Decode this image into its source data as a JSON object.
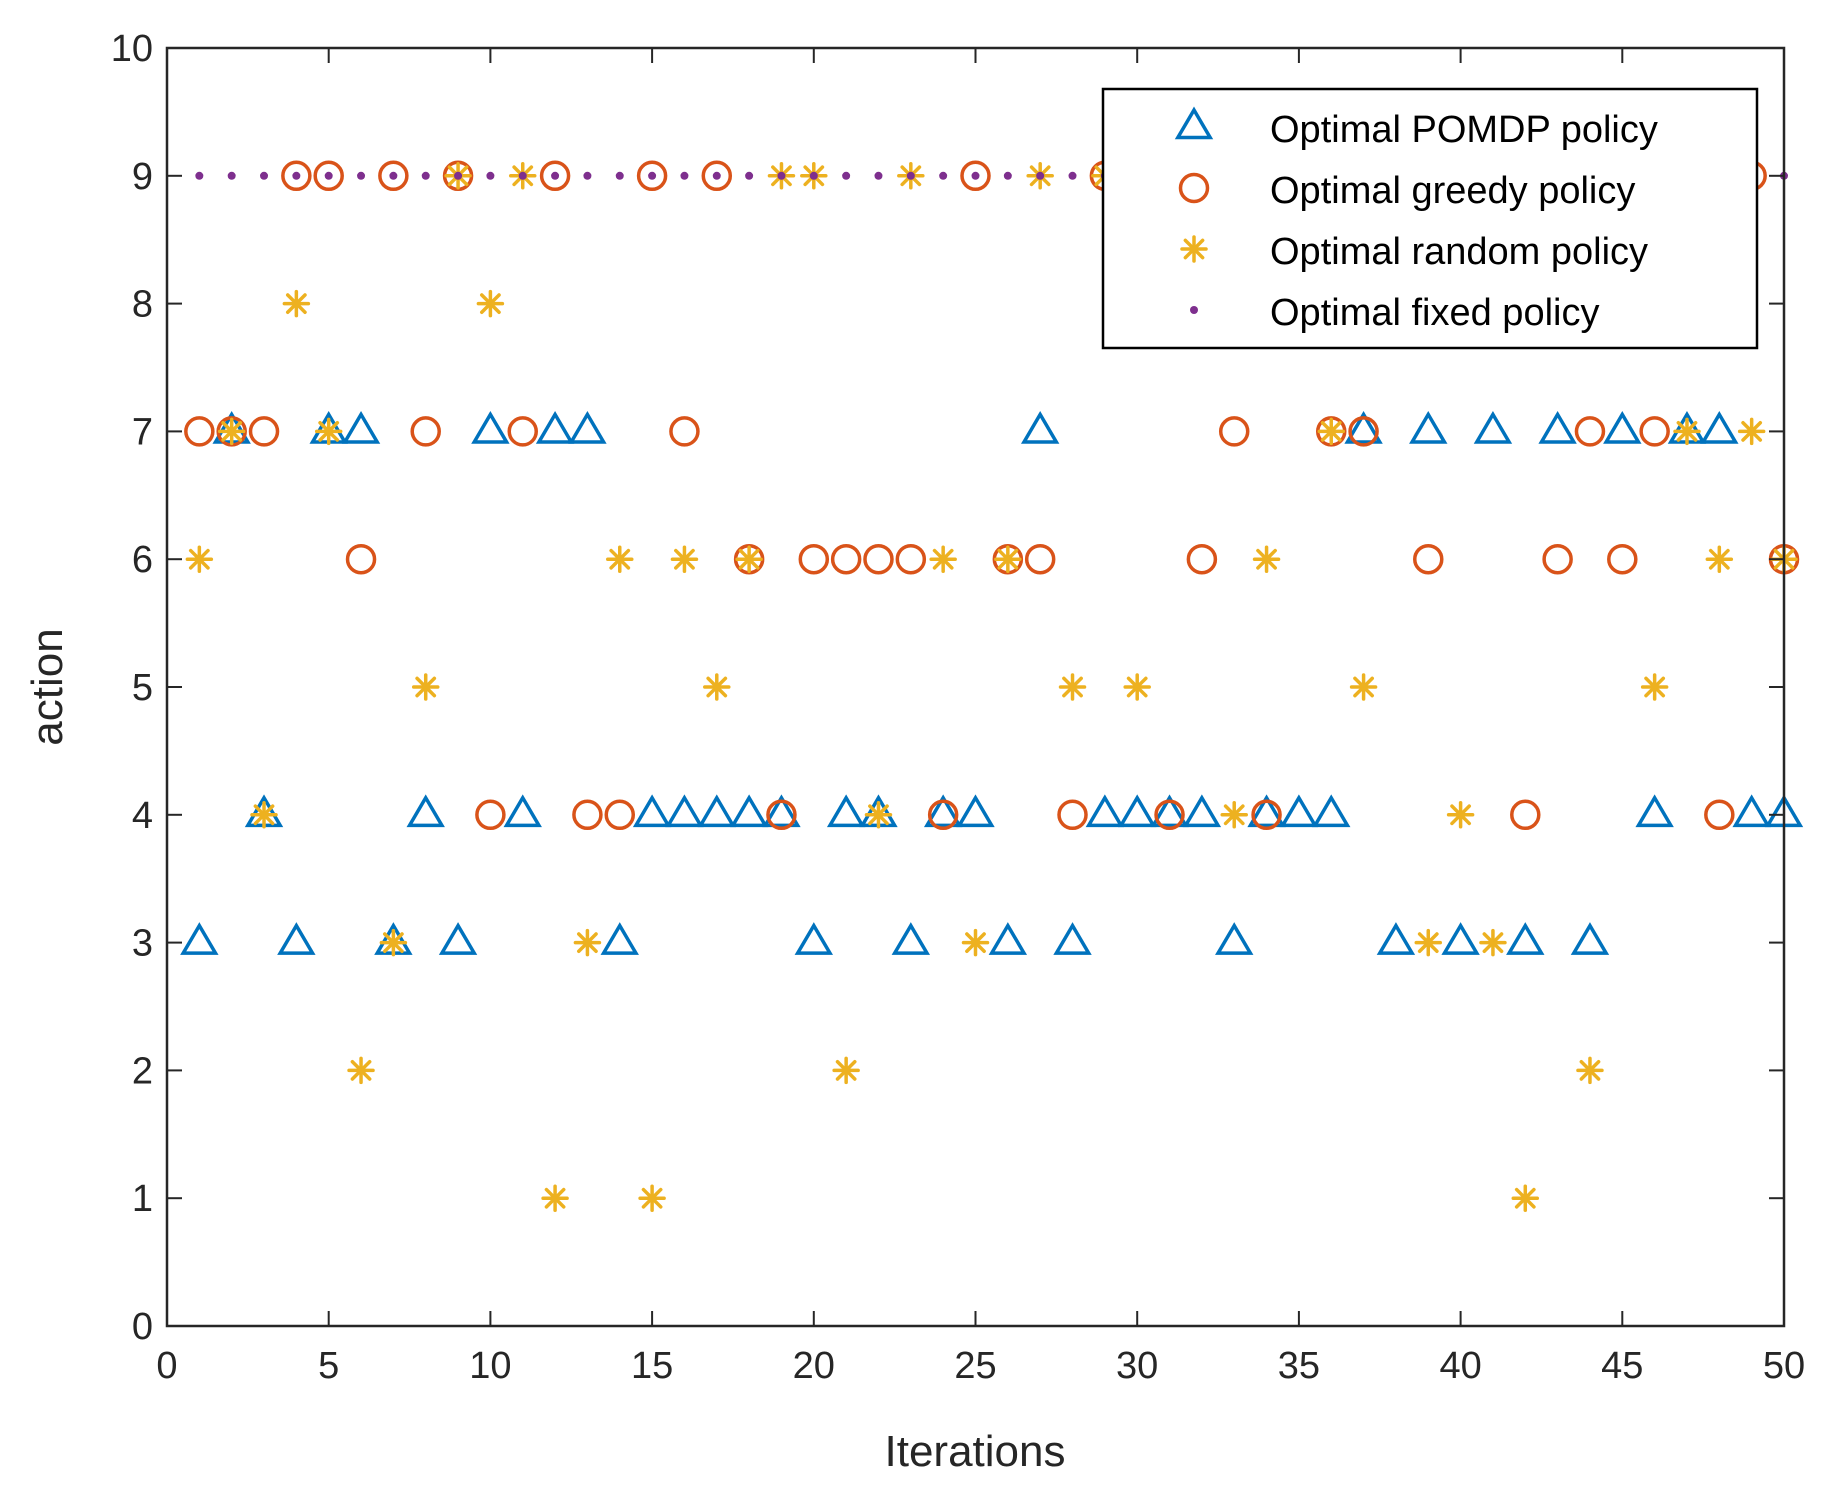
{
  "chart_data": {
    "type": "scatter",
    "xlabel": "Iterations",
    "ylabel": "action",
    "xlim": [
      0,
      50
    ],
    "ylim": [
      0,
      10
    ],
    "xticks": [
      0,
      5,
      10,
      15,
      20,
      25,
      30,
      35,
      40,
      45,
      50
    ],
    "yticks": [
      0,
      1,
      2,
      3,
      4,
      5,
      6,
      7,
      8,
      9,
      10
    ],
    "grid": false,
    "legend_position": "top-right",
    "series": [
      {
        "name": "Optimal POMDP policy",
        "marker": "triangle",
        "color": "#0072BD",
        "x": [
          1,
          2,
          3,
          4,
          5,
          6,
          7,
          8,
          9,
          10,
          11,
          12,
          13,
          14,
          15,
          16,
          17,
          18,
          19,
          20,
          21,
          22,
          23,
          24,
          25,
          26,
          27,
          28,
          29,
          30,
          31,
          32,
          33,
          34,
          35,
          36,
          37,
          38,
          39,
          40,
          41,
          42,
          43,
          44,
          45,
          46,
          47,
          48,
          49,
          50
        ],
        "y": [
          3,
          7,
          4,
          3,
          7,
          7,
          3,
          4,
          3,
          7,
          4,
          7,
          7,
          3,
          4,
          4,
          4,
          4,
          4,
          3,
          4,
          4,
          3,
          4,
          4,
          3,
          7,
          3,
          4,
          4,
          4,
          4,
          3,
          4,
          4,
          4,
          7,
          3,
          7,
          3,
          7,
          3,
          7,
          3,
          7,
          4,
          7,
          7,
          4,
          4
        ]
      },
      {
        "name": "Optimal greedy policy",
        "marker": "circle",
        "color": "#D95319",
        "x": [
          1,
          2,
          3,
          4,
          5,
          6,
          7,
          8,
          9,
          10,
          11,
          12,
          13,
          14,
          15,
          16,
          17,
          18,
          19,
          20,
          21,
          22,
          23,
          24,
          25,
          26,
          27,
          28,
          29,
          30,
          31,
          32,
          33,
          34,
          35,
          36,
          37,
          38,
          39,
          40,
          41,
          42,
          43,
          44,
          45,
          46,
          47,
          48,
          49,
          50
        ],
        "y": [
          7,
          7,
          7,
          9,
          9,
          6,
          9,
          7,
          9,
          4,
          7,
          9,
          4,
          4,
          9,
          7,
          9,
          6,
          4,
          6,
          6,
          6,
          6,
          4,
          9,
          6,
          6,
          4,
          9,
          9,
          4,
          6,
          7,
          4,
          9,
          7,
          7,
          9,
          6,
          9,
          9,
          4,
          6,
          7,
          6,
          7,
          9,
          4,
          9,
          6
        ]
      },
      {
        "name": "Optimal random policy",
        "marker": "asterisk",
        "color": "#EDB120",
        "x": [
          1,
          2,
          3,
          4,
          5,
          6,
          7,
          8,
          9,
          10,
          11,
          12,
          13,
          14,
          15,
          16,
          17,
          18,
          19,
          20,
          21,
          22,
          23,
          24,
          25,
          26,
          27,
          28,
          29,
          30,
          31,
          32,
          33,
          34,
          35,
          36,
          37,
          38,
          39,
          40,
          41,
          42,
          43,
          44,
          45,
          46,
          47,
          48,
          49,
          50
        ],
        "y": [
          6,
          7,
          4,
          8,
          7,
          2,
          3,
          5,
          9,
          8,
          9,
          1,
          3,
          6,
          1,
          6,
          5,
          6,
          9,
          9,
          2,
          4,
          9,
          6,
          3,
          6,
          9,
          5,
          9,
          5,
          9,
          9,
          4,
          6,
          9,
          7,
          5,
          9,
          3,
          4,
          3,
          1,
          9,
          2,
          9,
          5,
          7,
          6,
          7,
          6
        ]
      },
      {
        "name": "Optimal fixed policy",
        "marker": "dot",
        "color": "#7E2F8E",
        "x": [
          1,
          2,
          3,
          4,
          5,
          6,
          7,
          8,
          9,
          10,
          11,
          12,
          13,
          14,
          15,
          16,
          17,
          18,
          19,
          20,
          21,
          22,
          23,
          24,
          25,
          26,
          27,
          28,
          29,
          30,
          31,
          32,
          33,
          34,
          35,
          36,
          37,
          38,
          39,
          40,
          41,
          42,
          43,
          44,
          45,
          46,
          47,
          48,
          49,
          50
        ],
        "y": [
          9,
          9,
          9,
          9,
          9,
          9,
          9,
          9,
          9,
          9,
          9,
          9,
          9,
          9,
          9,
          9,
          9,
          9,
          9,
          9,
          9,
          9,
          9,
          9,
          9,
          9,
          9,
          9,
          9,
          9,
          9,
          9,
          9,
          9,
          9,
          9,
          9,
          9,
          9,
          9,
          9,
          9,
          9,
          9,
          9,
          9,
          9,
          9,
          9,
          9
        ]
      }
    ]
  }
}
